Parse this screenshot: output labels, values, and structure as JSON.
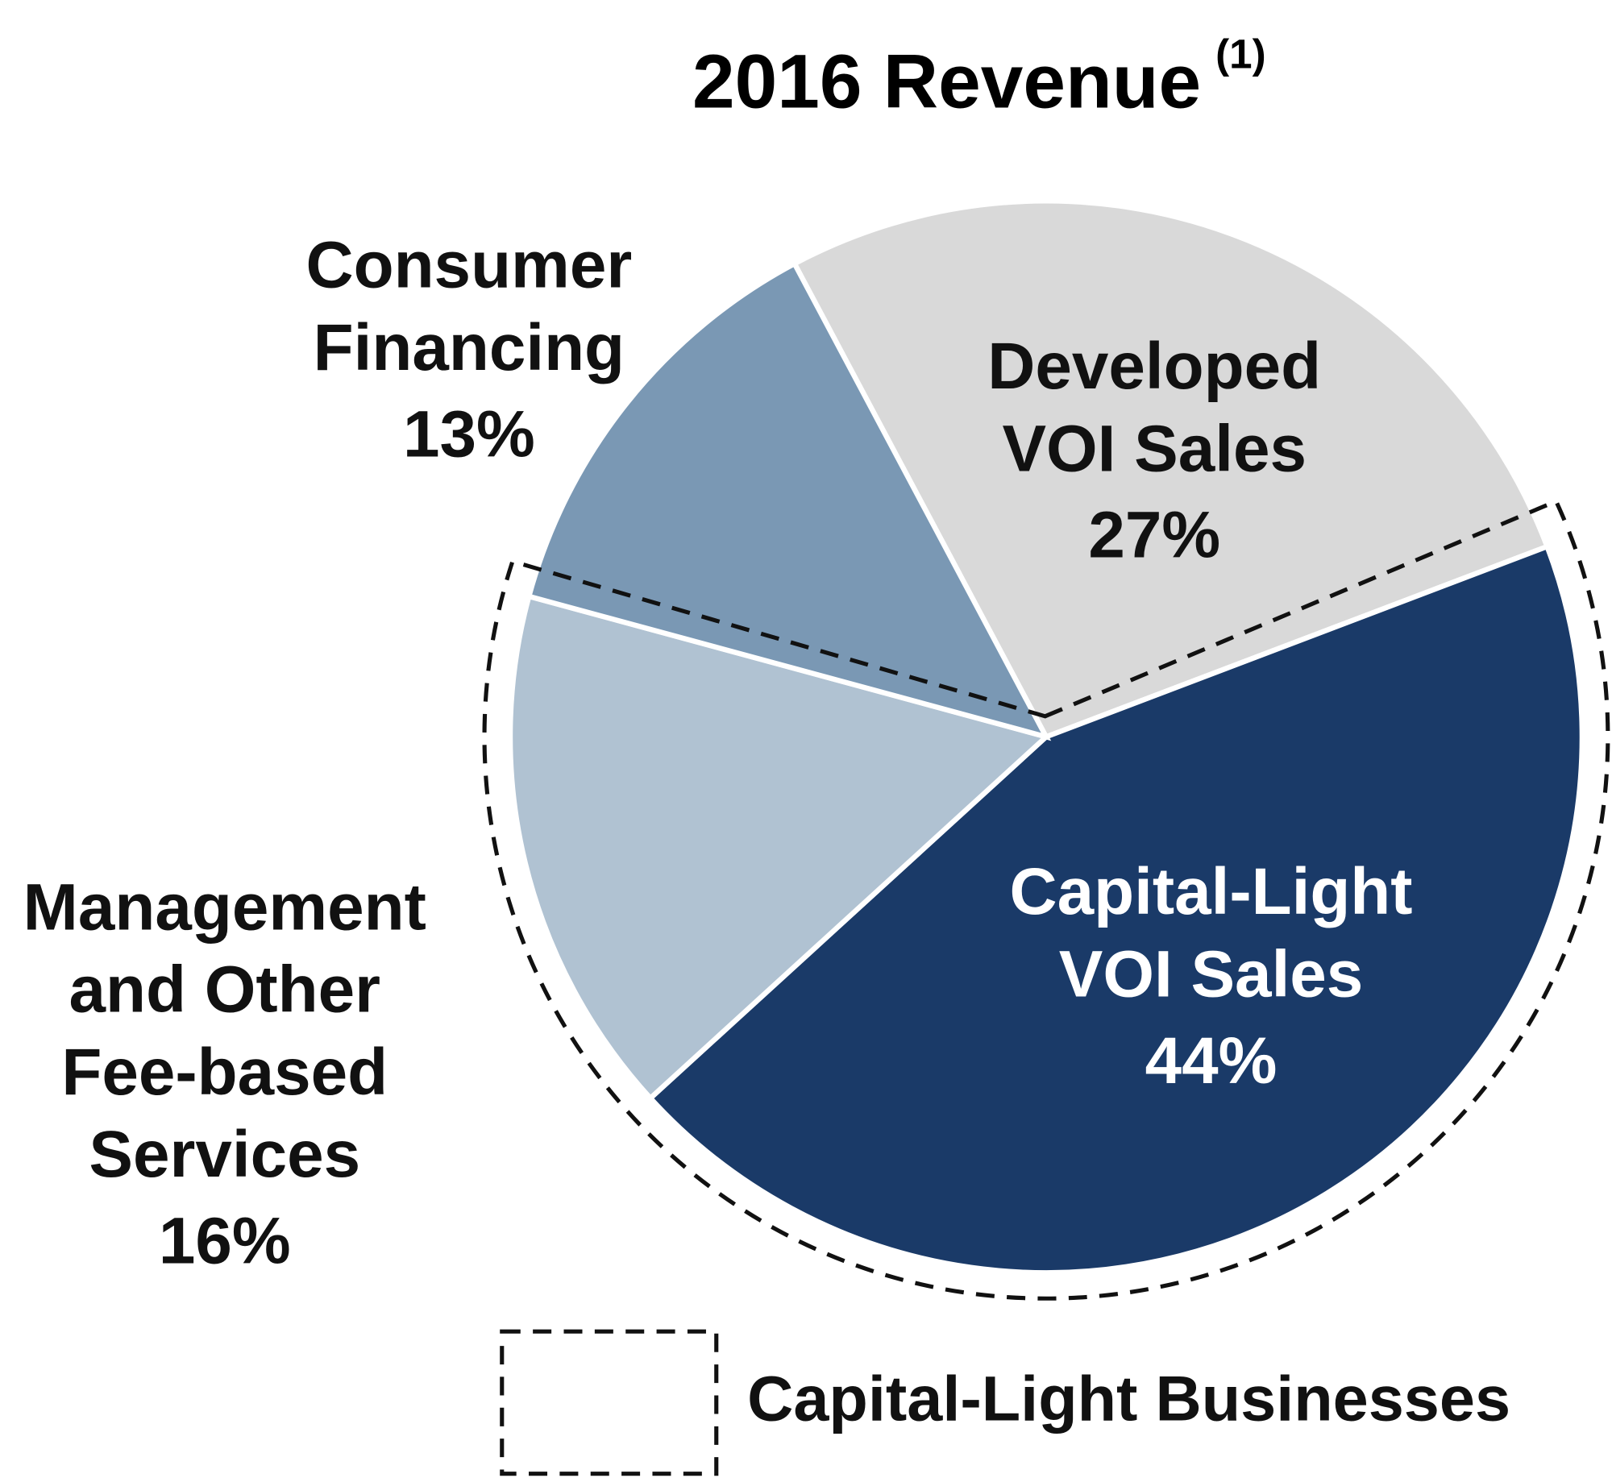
{
  "chart_data": {
    "type": "pie",
    "title": "2016 Revenue",
    "title_note": "(1)",
    "categories": [
      [
        "Developed",
        "VOI Sales"
      ],
      [
        "Capital-Light",
        "VOI Sales"
      ],
      [
        "Management",
        "and Other",
        "Fee-based",
        "Services"
      ],
      [
        "Consumer",
        "Financing"
      ]
    ],
    "values": [
      27,
      44,
      16,
      13
    ],
    "value_labels": [
      "27%",
      "44%",
      "16%",
      "13%"
    ],
    "colors": [
      "#d9d9d9",
      "#1a3a68",
      "#b0c2d2",
      "#7a98b4"
    ],
    "legend": {
      "label": "Capital-Light Businesses"
    }
  }
}
